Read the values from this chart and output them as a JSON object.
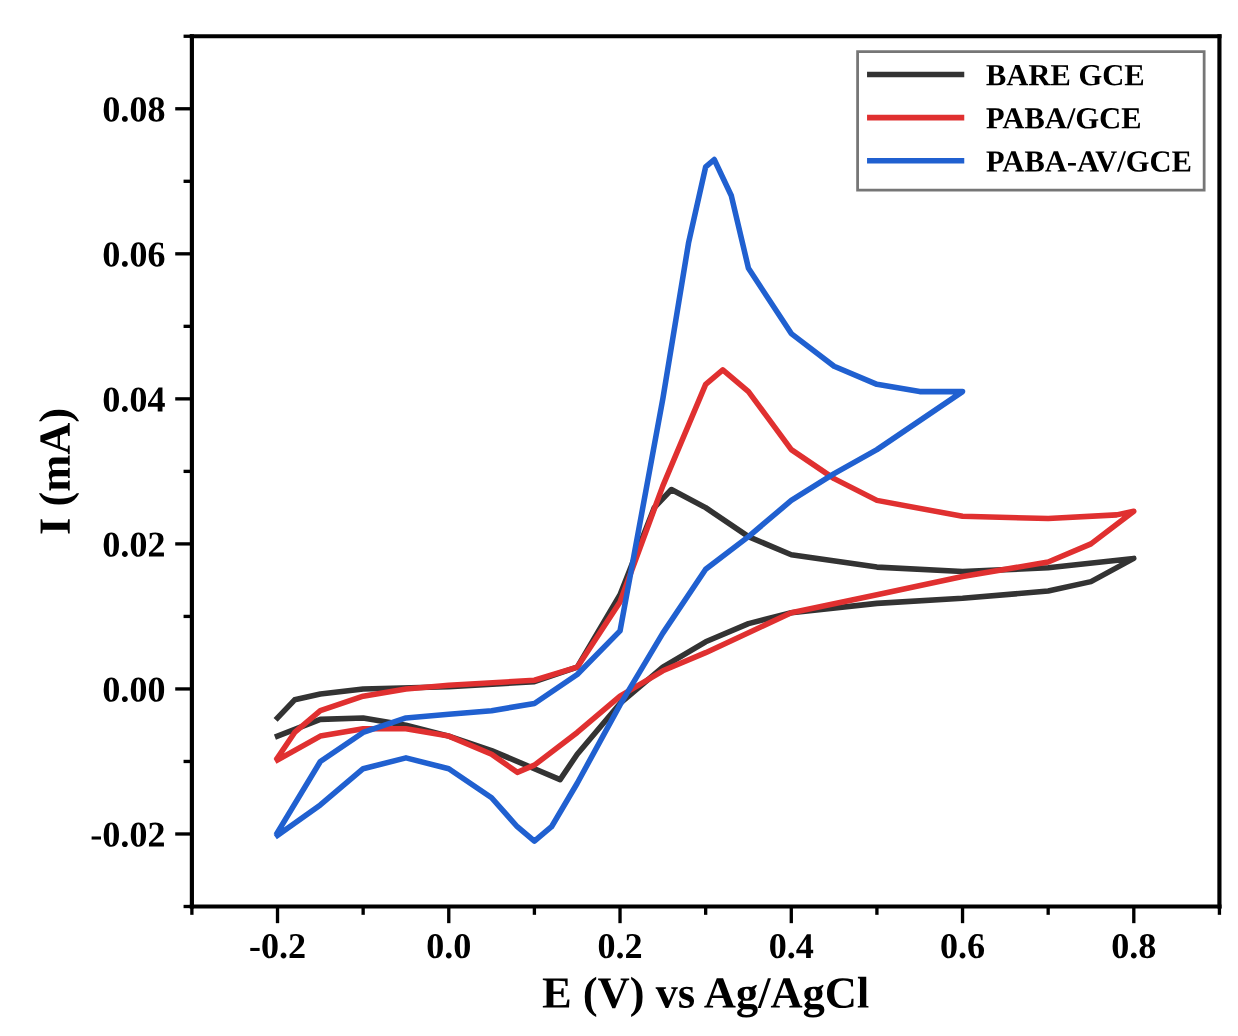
{
  "chart_data": {
    "type": "line",
    "xlabel": "E (V) vs Ag/AgCl",
    "ylabel": "I (mA)",
    "xlim": [
      -0.3,
      0.9
    ],
    "xticks": [
      -0.2,
      {
        "value": 0,
        "label": "0.0"
      },
      0.2,
      0.4,
      0.6,
      0.8
    ],
    "ylim": [
      -0.03,
      0.09
    ],
    "yticks": [
      -0.02,
      {
        "value": 0,
        "label": "0.00"
      },
      0.02,
      0.04,
      0.06,
      0.08
    ],
    "grid": false,
    "legend": "top right",
    "marker": "none",
    "line_style": "solid",
    "series": [
      {
        "name": "BARE GCE",
        "color": "#333333",
        "x": [
          -0.2,
          -0.18,
          -0.15,
          -0.1,
          0.0,
          0.1,
          0.15,
          0.2,
          0.24,
          0.26,
          0.3,
          0.35,
          0.4,
          0.5,
          0.6,
          0.7,
          0.8,
          0.75,
          0.7,
          0.6,
          0.5,
          0.4,
          0.35,
          0.3,
          0.25,
          0.2,
          0.15,
          0.13,
          0.1,
          0.05,
          0.0,
          -0.05,
          -0.1,
          -0.15,
          -0.2
        ],
        "values": [
          -0.004,
          -0.0015,
          -0.0007,
          0.0,
          0.0003,
          0.001,
          0.003,
          0.013,
          0.025,
          0.0275,
          0.025,
          0.021,
          0.0185,
          0.0168,
          0.0162,
          0.0167,
          0.018,
          0.0148,
          0.0135,
          0.0125,
          0.0118,
          0.0105,
          0.009,
          0.0065,
          0.003,
          -0.002,
          -0.009,
          -0.0125,
          -0.011,
          -0.0085,
          -0.0065,
          -0.005,
          -0.004,
          -0.0042,
          -0.0065
        ]
      },
      {
        "name": "PABA/GCE",
        "color": "#e03030",
        "x": [
          -0.2,
          -0.18,
          -0.15,
          -0.1,
          -0.05,
          0.0,
          0.1,
          0.15,
          0.2,
          0.25,
          0.3,
          0.32,
          0.35,
          0.4,
          0.45,
          0.5,
          0.6,
          0.7,
          0.78,
          0.8,
          0.75,
          0.7,
          0.6,
          0.5,
          0.4,
          0.3,
          0.25,
          0.2,
          0.15,
          0.1,
          0.08,
          0.05,
          0.0,
          -0.05,
          -0.1,
          -0.15,
          -0.2
        ],
        "values": [
          -0.0095,
          -0.006,
          -0.003,
          -0.001,
          0.0,
          0.0005,
          0.0012,
          0.003,
          0.012,
          0.028,
          0.042,
          0.044,
          0.041,
          0.033,
          0.029,
          0.026,
          0.0238,
          0.0235,
          0.024,
          0.0245,
          0.02,
          0.0175,
          0.0155,
          0.013,
          0.0105,
          0.005,
          0.0025,
          -0.001,
          -0.006,
          -0.0105,
          -0.0115,
          -0.009,
          -0.0065,
          -0.0055,
          -0.0055,
          -0.0065,
          -0.0098
        ]
      },
      {
        "name": "PABA-AV/GCE",
        "color": "#2060d0",
        "x": [
          -0.2,
          -0.15,
          -0.1,
          -0.05,
          0.0,
          0.05,
          0.1,
          0.15,
          0.2,
          0.25,
          0.28,
          0.3,
          0.31,
          0.33,
          0.35,
          0.4,
          0.45,
          0.5,
          0.55,
          0.6,
          0.55,
          0.5,
          0.45,
          0.4,
          0.35,
          0.3,
          0.25,
          0.2,
          0.15,
          0.12,
          0.1,
          0.08,
          0.05,
          0.0,
          -0.05,
          -0.1,
          -0.15,
          -0.2
        ],
        "values": [
          -0.0198,
          -0.01,
          -0.006,
          -0.004,
          -0.0035,
          -0.003,
          -0.002,
          0.002,
          0.008,
          0.04,
          0.0615,
          0.072,
          0.073,
          0.068,
          0.058,
          0.049,
          0.0445,
          0.042,
          0.041,
          0.041,
          0.037,
          0.033,
          0.0297,
          0.026,
          0.021,
          0.0165,
          0.0077,
          -0.0022,
          -0.013,
          -0.019,
          -0.021,
          -0.019,
          -0.015,
          -0.011,
          -0.0095,
          -0.011,
          -0.016,
          -0.0202
        ]
      }
    ]
  }
}
